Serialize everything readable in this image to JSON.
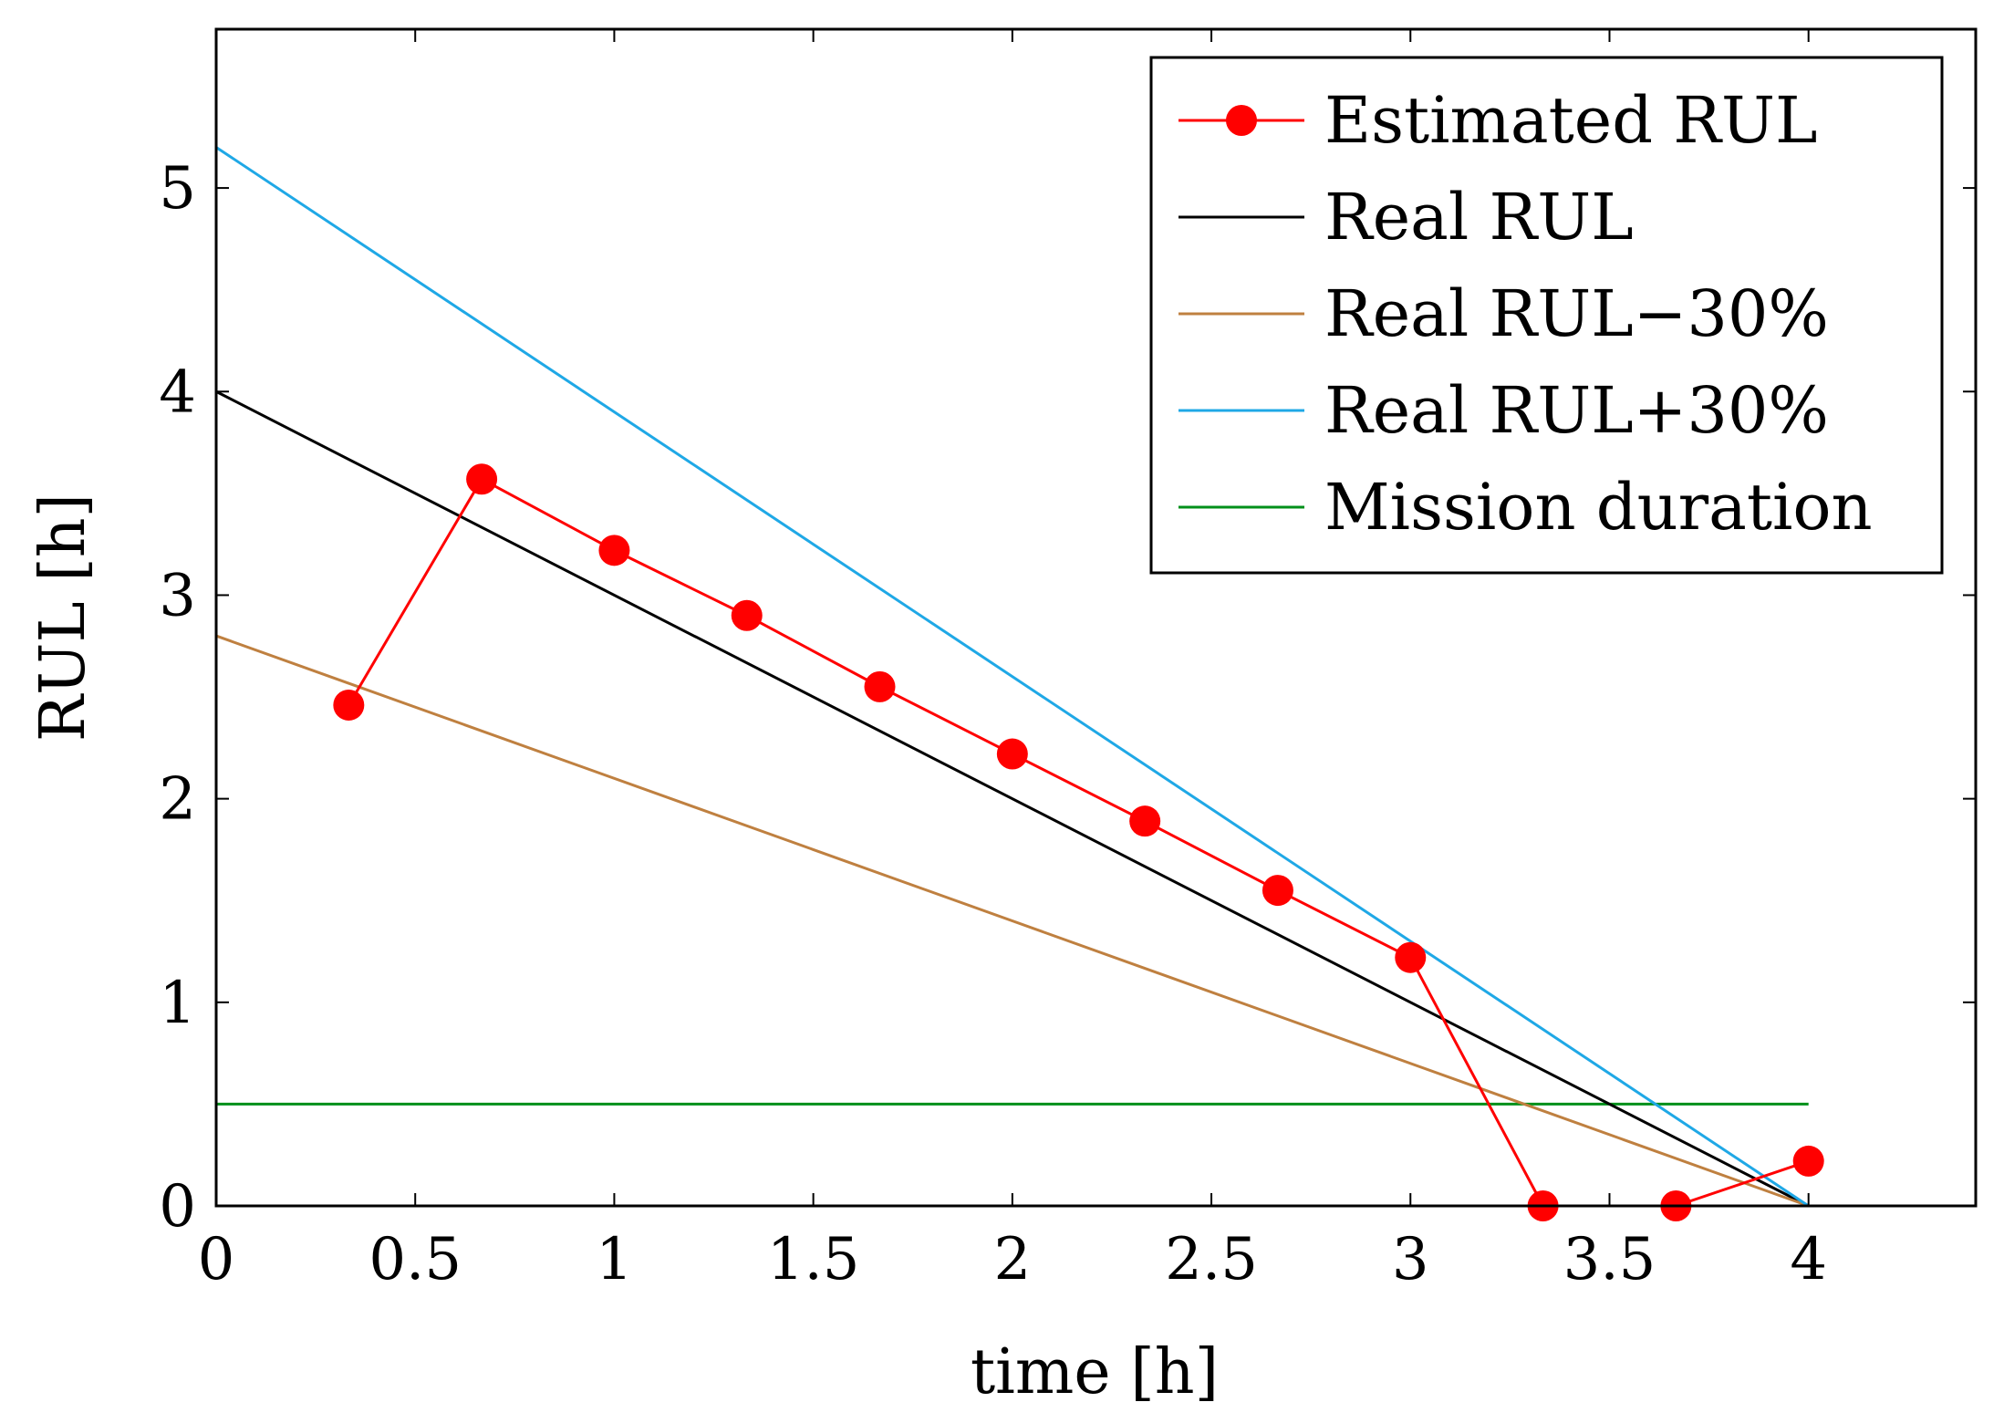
{
  "chart_data": {
    "type": "line",
    "title": "",
    "xlabel": "time [h]",
    "ylabel": "RUL [h]",
    "xlim": [
      0,
      4.42
    ],
    "ylim": [
      0,
      5.78
    ],
    "xticks": [
      0,
      0.5,
      1,
      1.5,
      2,
      2.5,
      3,
      3.5,
      4
    ],
    "xtick_labels": [
      "0",
      "0.5",
      "1",
      "1.5",
      "2",
      "2.5",
      "3",
      "3.5",
      "4"
    ],
    "yticks": [
      0,
      1,
      2,
      3,
      4,
      5
    ],
    "ytick_labels": [
      "0",
      "1",
      "2",
      "3",
      "4",
      "5"
    ],
    "grid": false,
    "legend_position": "top-right",
    "series": [
      {
        "name": "Estimated RUL",
        "color": "#ff0000",
        "marker": "circle",
        "x": [
          0.333,
          0.667,
          1.0,
          1.333,
          1.667,
          2.0,
          2.333,
          2.667,
          3.0,
          3.333,
          3.667,
          4.0
        ],
        "y": [
          2.46,
          3.57,
          3.22,
          2.9,
          2.55,
          2.22,
          1.89,
          1.55,
          1.22,
          0.0,
          0.0,
          0.22
        ]
      },
      {
        "name": "Real RUL",
        "color": "#000000",
        "marker": "none",
        "x": [
          0,
          4
        ],
        "y": [
          4.0,
          0.0
        ]
      },
      {
        "name": "Real RUL−30%",
        "color": "#bf8040",
        "marker": "none",
        "x": [
          0,
          4
        ],
        "y": [
          2.8,
          0.0
        ]
      },
      {
        "name": "Real RUL+30%",
        "color": "#1fa8e6",
        "marker": "none",
        "x": [
          0,
          4
        ],
        "y": [
          5.2,
          0.0
        ]
      },
      {
        "name": "Mission duration",
        "color": "#00901a",
        "marker": "none",
        "x": [
          0,
          4
        ],
        "y": [
          0.5,
          0.5
        ]
      }
    ]
  }
}
